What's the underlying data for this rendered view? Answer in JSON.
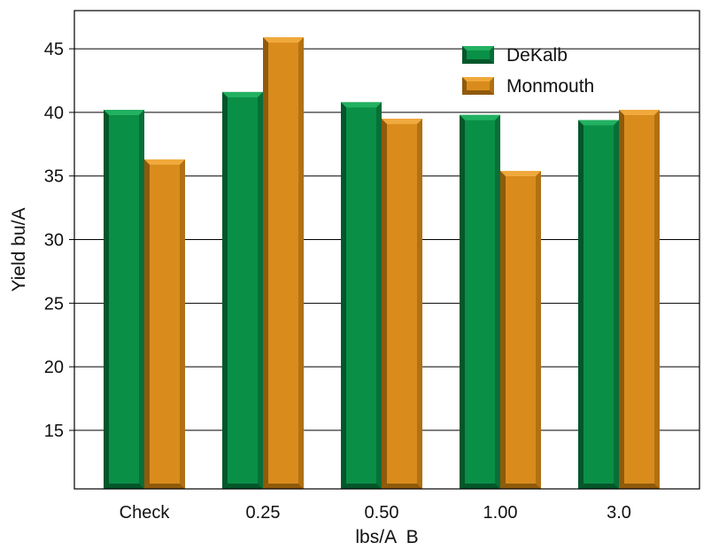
{
  "chart_data": {
    "type": "bar",
    "title": "",
    "xlabel": "lbs/A  B",
    "ylabel": "Yield bu/A",
    "categories": [
      "Check",
      "0.25",
      "0.50",
      "1.00",
      "3.0"
    ],
    "series": [
      {
        "name": "DeKalb",
        "values": [
          40.2,
          41.6,
          40.8,
          39.8,
          39.4
        ]
      },
      {
        "name": "Monmouth",
        "values": [
          36.3,
          45.9,
          39.5,
          35.4,
          40.2
        ]
      }
    ],
    "ylim": [
      10.4,
      48
    ],
    "yticks": [
      "15",
      "20",
      "25",
      "30",
      "35",
      "40",
      "45"
    ],
    "grid": "horizontal",
    "legend_position": "top-right",
    "colors": {
      "DeKalb": {
        "front": "#0a8f47",
        "light": "#22b161",
        "dark": "#05562a"
      },
      "Monmouth": {
        "front": "#d98c1c",
        "light": "#f0a93c",
        "dark": "#8f5a0c"
      }
    }
  }
}
